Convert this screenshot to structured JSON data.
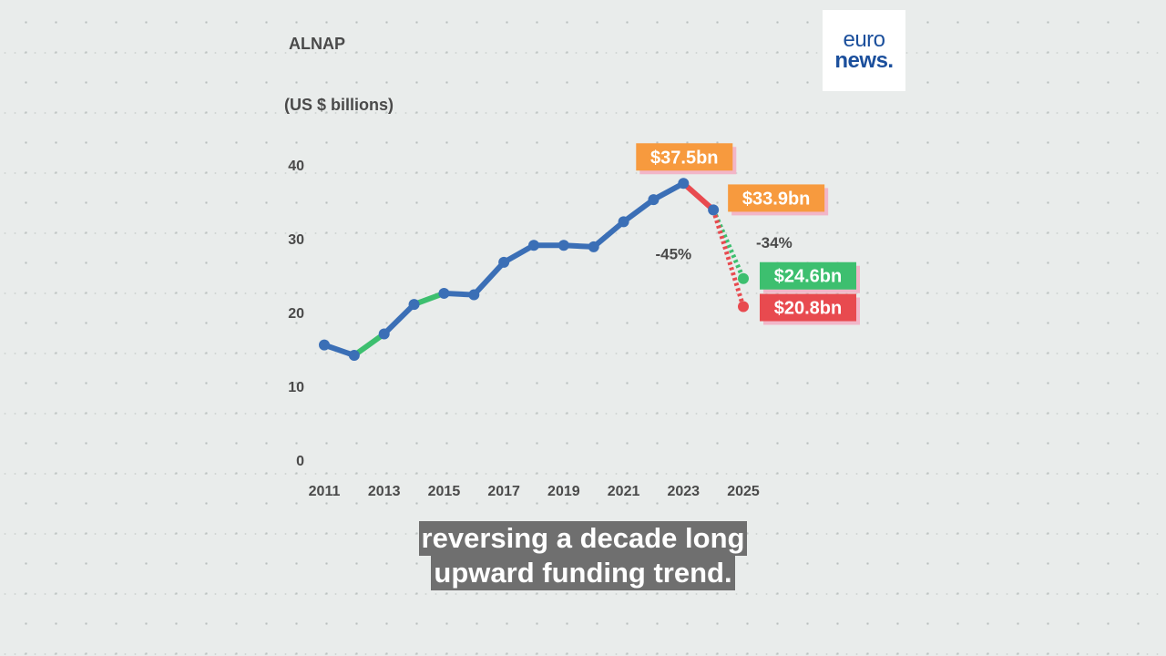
{
  "logo": {
    "line1": "euro",
    "line2": "news."
  },
  "caption": {
    "line1": "reversing a decade long",
    "line2": "upward funding trend."
  },
  "chart_data": {
    "type": "line",
    "title": "ALNAP",
    "ylabel": "(US $ billions)",
    "ylim": [
      0,
      40
    ],
    "yticks": [
      0,
      10,
      20,
      30,
      40
    ],
    "xticks": [
      2011,
      2013,
      2015,
      2017,
      2019,
      2021,
      2023,
      2025
    ],
    "xlim": [
      2011,
      2025
    ],
    "series": [
      {
        "x": [
          2011,
          2012,
          2013,
          2014,
          2015,
          2016,
          2017,
          2018,
          2019,
          2020,
          2021,
          2022,
          2023,
          2024
        ],
        "values": [
          15.6,
          14.2,
          17.1,
          21.1,
          22.6,
          22.4,
          26.8,
          29.1,
          29.1,
          28.9,
          32.3,
          35.3,
          37.5,
          33.9
        ],
        "segment_colors": [
          "#3b6fb6",
          "#3dbf6f",
          "#3b6fb6",
          "#3dbf6f",
          "#3b6fb6",
          "#3b6fb6",
          "#3b6fb6",
          "#3b6fb6",
          "#3b6fb6",
          "#3b6fb6",
          "#3b6fb6",
          "#3b6fb6",
          "#e84a4f"
        ],
        "color": "#3b6fb6"
      },
      {
        "x": [
          2024,
          2025
        ],
        "values": [
          33.9,
          24.6
        ],
        "color": "#3dbf6f",
        "dashed": true
      },
      {
        "x": [
          2024,
          2025
        ],
        "values": [
          33.9,
          20.8
        ],
        "color": "#e84a4f",
        "dashed": true
      }
    ],
    "value_labels": [
      {
        "text": "$37.5bn",
        "x": 2023,
        "y": 37.5,
        "color": "#f79a3e"
      },
      {
        "text": "$33.9bn",
        "x": 2024,
        "y": 33.9,
        "color": "#f79a3e"
      },
      {
        "text": "$24.6bn",
        "x": 2025,
        "y": 24.6,
        "color": "#3dbf6f"
      },
      {
        "text": "$20.8bn",
        "x": 2025,
        "y": 20.8,
        "color": "#e84a4f"
      }
    ],
    "annotations": [
      {
        "text": "-34%",
        "x": 2025,
        "y": 30.0
      },
      {
        "text": "-45%",
        "x": 2024,
        "y": 26.5
      }
    ]
  }
}
